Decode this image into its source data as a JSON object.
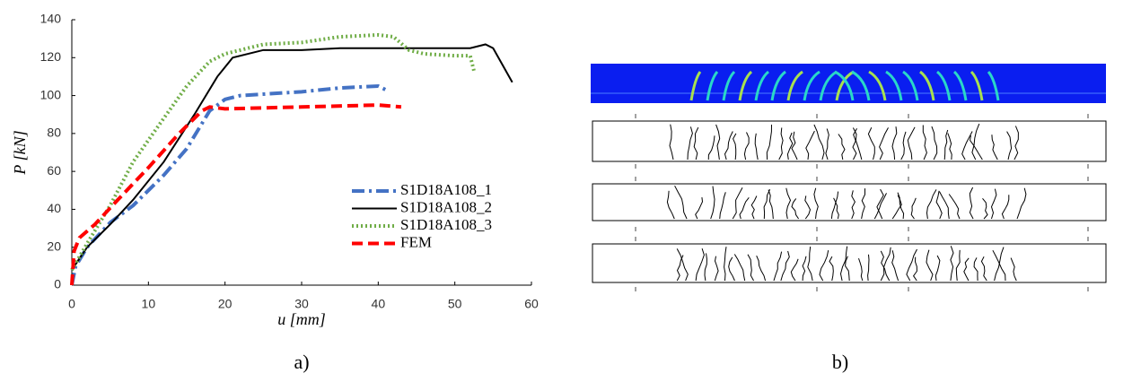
{
  "chart_data": {
    "type": "line",
    "xlabel": "u [mm]",
    "ylabel": "P [kN]",
    "xlim": [
      0,
      60
    ],
    "xticks": [
      0,
      10,
      20,
      30,
      40,
      50,
      60
    ],
    "ylim": [
      0,
      140
    ],
    "yticks": [
      0,
      20,
      40,
      60,
      80,
      100,
      120,
      140
    ],
    "legend": "lower-right",
    "series": [
      {
        "name": "S1D18A108_1",
        "color": "#4472c4",
        "style": "dashdot",
        "x": [
          0,
          0.5,
          2,
          5,
          8,
          12,
          15,
          18,
          20,
          22,
          30,
          35,
          40,
          41
        ],
        "values": [
          0,
          10,
          20,
          33,
          42,
          58,
          72,
          92,
          98,
          100,
          102,
          104,
          105,
          103
        ]
      },
      {
        "name": "S1D18A108_2",
        "color": "#000000",
        "style": "solid",
        "x": [
          0,
          2,
          5,
          8,
          12,
          16,
          19,
          21,
          25,
          30,
          35,
          40,
          45,
          50,
          52,
          54,
          55,
          57.5
        ],
        "values": [
          8,
          20,
          32,
          45,
          65,
          90,
          110,
          120,
          124,
          124,
          125,
          125,
          125,
          125,
          125,
          127,
          125,
          107
        ]
      },
      {
        "name": "S1D18A108_3",
        "color": "#70ad47",
        "style": "dotted",
        "x": [
          0,
          2,
          5,
          8,
          12,
          15,
          18,
          20,
          25,
          30,
          35,
          40,
          42,
          44,
          46,
          50,
          52,
          52.5
        ],
        "values": [
          8,
          22,
          42,
          65,
          88,
          105,
          118,
          122,
          127,
          128,
          131,
          132,
          131,
          124,
          122,
          121,
          121,
          113
        ]
      },
      {
        "name": "FEM",
        "color": "#ff0000",
        "style": "dashed",
        "x": [
          0,
          0.3,
          1,
          3,
          6,
          10,
          14,
          17,
          18,
          20,
          30,
          40,
          43
        ],
        "values": [
          0,
          18,
          25,
          32,
          45,
          62,
          80,
          92,
          94,
          93,
          94,
          95,
          94
        ]
      }
    ]
  },
  "panel_labels": {
    "a": "a)",
    "b": "b)"
  }
}
